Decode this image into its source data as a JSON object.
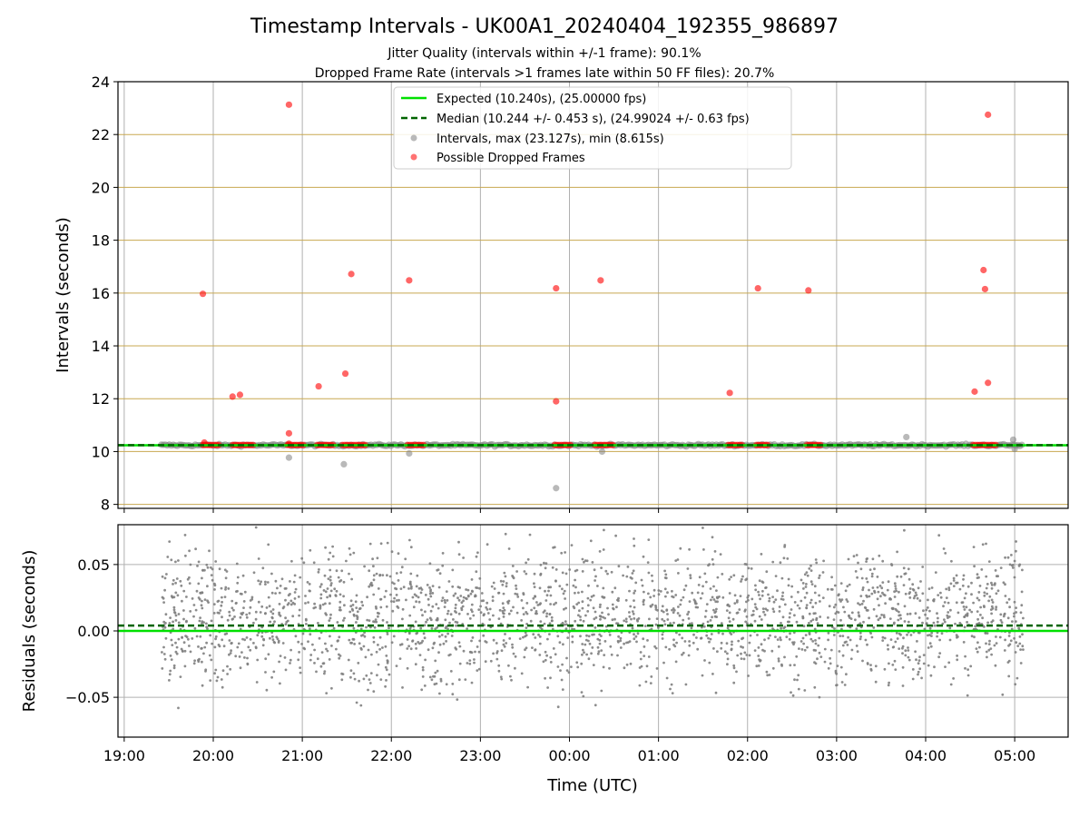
{
  "title": "Timestamp Intervals - UK00A1_20240404_192355_986897",
  "subtitle_line1": "Jitter Quality (intervals within +/-1 frame): 90.1%",
  "subtitle_line2": "Dropped Frame Rate (intervals >1 frames late within 50 FF files): 20.7%",
  "colors": {
    "expected": "#00e000",
    "median": "#006400",
    "intervals": "#808080",
    "dropped": "#ff0000",
    "hgrid_top": "#c8a850",
    "grid": "#b0b0b0"
  },
  "chart_data": [
    {
      "type": "scatter",
      "panel": "intervals",
      "ylabel": "Intervals (seconds)",
      "ylim": [
        7.85,
        24
      ],
      "yticks": [
        "8",
        "10",
        "12",
        "14",
        "16",
        "18",
        "20",
        "22",
        "24"
      ],
      "ytick_values": [
        8,
        10,
        12,
        14,
        16,
        18,
        20,
        22,
        24
      ],
      "xlim_hours": [
        18.93,
        29.6
      ],
      "grid": true,
      "legend_position": "top-center",
      "legend": [
        {
          "label": "Expected (10.240s), (25.00000 fps)",
          "kind": "solid-line",
          "color": "#00e000"
        },
        {
          "label": "Median (10.244 +/- 0.453 s), (24.99024 +/- 0.63 fps)",
          "kind": "dashed-line",
          "color": "#006400"
        },
        {
          "label": "Intervals, max (23.127s), min (8.615s)",
          "kind": "marker",
          "color": "#808080"
        },
        {
          "label": "Possible Dropped Frames",
          "kind": "marker",
          "color": "#ff0000"
        }
      ],
      "expected_value": 10.24,
      "median_value": 10.244,
      "baseline_band": {
        "x_start": "19:25",
        "x_end": "05:05",
        "y": 10.24
      },
      "dropped_frames": [
        {
          "x": "19:53",
          "y": 15.97
        },
        {
          "x": "20:13",
          "y": 12.08
        },
        {
          "x": "20:18",
          "y": 12.15
        },
        {
          "x": "20:51",
          "y": 23.13
        },
        {
          "x": "20:51",
          "y": 10.69
        },
        {
          "x": "21:11",
          "y": 12.47
        },
        {
          "x": "21:29",
          "y": 12.95
        },
        {
          "x": "21:33",
          "y": 16.72
        },
        {
          "x": "22:12",
          "y": 16.48
        },
        {
          "x": "23:51",
          "y": 16.18
        },
        {
          "x": "23:51",
          "y": 11.9
        },
        {
          "x": "00:21",
          "y": 16.48
        },
        {
          "x": "01:48",
          "y": 12.22
        },
        {
          "x": "02:07",
          "y": 16.18
        },
        {
          "x": "02:41",
          "y": 16.1
        },
        {
          "x": "04:33",
          "y": 12.27
        },
        {
          "x": "04:39",
          "y": 16.87
        },
        {
          "x": "04:40",
          "y": 16.15
        },
        {
          "x": "04:42",
          "y": 12.6
        },
        {
          "x": "04:42",
          "y": 22.75
        },
        {
          "x": "19:54",
          "y": 10.34
        },
        {
          "x": "20:51",
          "y": 10.3
        }
      ],
      "dropped_clusters": [
        {
          "x_start": "19:53",
          "x_end": "20:05",
          "y": 10.25
        },
        {
          "x_start": "20:13",
          "x_end": "20:28",
          "y": 10.25
        },
        {
          "x_start": "20:50",
          "x_end": "21:02",
          "y": 10.25
        },
        {
          "x_start": "21:10",
          "x_end": "21:22",
          "y": 10.25
        },
        {
          "x_start": "21:27",
          "x_end": "21:43",
          "y": 10.25
        },
        {
          "x_start": "22:11",
          "x_end": "22:22",
          "y": 10.25
        },
        {
          "x_start": "23:50",
          "x_end": "00:01",
          "y": 10.25
        },
        {
          "x_start": "00:17",
          "x_end": "00:30",
          "y": 10.25
        },
        {
          "x_start": "01:47",
          "x_end": "01:57",
          "y": 10.25
        },
        {
          "x_start": "02:06",
          "x_end": "02:15",
          "y": 10.25
        },
        {
          "x_start": "02:40",
          "x_end": "02:50",
          "y": 10.25
        },
        {
          "x_start": "04:32",
          "x_end": "04:48",
          "y": 10.25
        }
      ],
      "interval_outliers": [
        {
          "x": "20:51",
          "y": 9.77
        },
        {
          "x": "21:28",
          "y": 9.52
        },
        {
          "x": "22:12",
          "y": 9.93
        },
        {
          "x": "23:51",
          "y": 8.615
        },
        {
          "x": "00:22",
          "y": 10.0
        },
        {
          "x": "03:47",
          "y": 10.55
        },
        {
          "x": "04:59",
          "y": 10.45
        },
        {
          "x": "05:00",
          "y": 10.1
        }
      ]
    },
    {
      "type": "scatter",
      "panel": "residuals",
      "ylabel": "Residuals (seconds)",
      "xlabel": "Time (UTC)",
      "ylim": [
        -0.08,
        0.08
      ],
      "yticks": [
        "−0.05",
        "0.00",
        "0.05"
      ],
      "ytick_values": [
        -0.05,
        0.0,
        0.05
      ],
      "xticks": [
        "19:00",
        "20:00",
        "21:00",
        "22:00",
        "23:00",
        "00:00",
        "01:00",
        "02:00",
        "03:00",
        "04:00",
        "05:00"
      ],
      "expected_value": 0.0,
      "median_value": 0.004,
      "residual_range": {
        "x_start": "19:25",
        "x_end": "05:06",
        "y_min": -0.072,
        "y_max": 0.078
      }
    }
  ]
}
